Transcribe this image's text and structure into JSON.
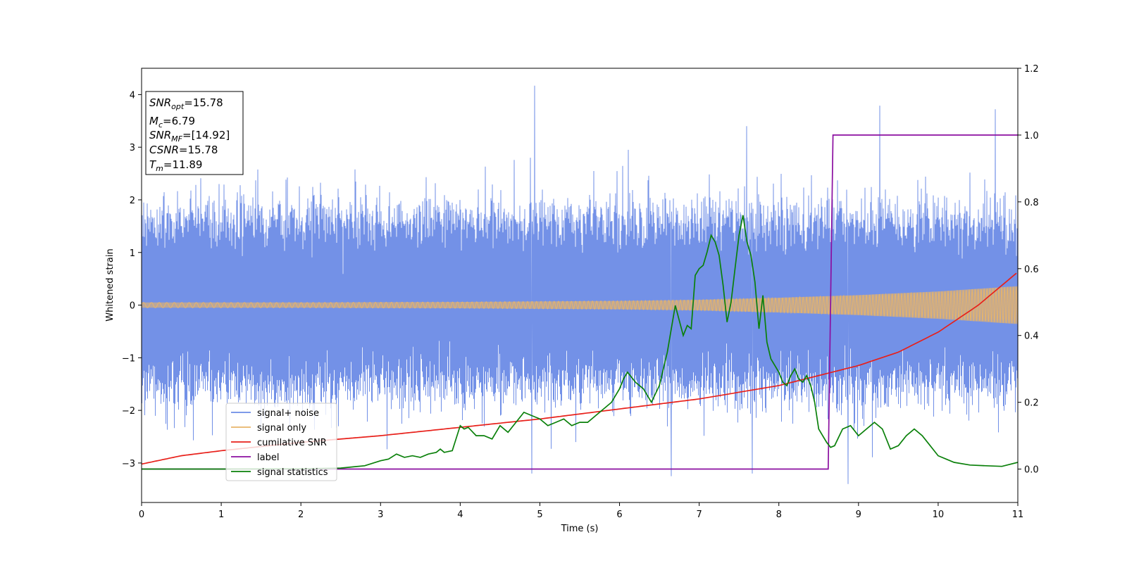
{
  "chart_data": {
    "type": "line",
    "xlabel": "Time (s)",
    "ylabel": "Whitened strain",
    "xlim": [
      0,
      11
    ],
    "ylim": [
      -3.75,
      4.5
    ],
    "y2lim": [
      -0.1,
      1.2
    ],
    "xticks": [
      "0",
      "1",
      "2",
      "3",
      "4",
      "5",
      "6",
      "7",
      "8",
      "9",
      "10",
      "11"
    ],
    "yticks": [
      "−3",
      "−2",
      "−1",
      "0",
      "1",
      "2",
      "3",
      "4"
    ],
    "y2ticks": [
      "0.0",
      "0.2",
      "0.4",
      "0.6",
      "0.8",
      "1.0",
      "1.2"
    ],
    "colors": {
      "signal_noise": "#6b8be6",
      "signal_only": "#e7b46a",
      "cumulative_snr": "#e8201a",
      "label": "#8b0fa0",
      "signal_statistics": "#0a800a"
    },
    "legend_position": "lower-left",
    "legend": [
      "signal+ noise",
      "signal only",
      "cumilative SNR",
      "label",
      "signal statistics"
    ],
    "info_box": [
      {
        "base": "SNR",
        "sub": "opt",
        "value": "=15.78"
      },
      {
        "base": "M",
        "sub": "c",
        "value": "=6.79"
      },
      {
        "base": "SNR",
        "sub": "MF",
        "value": "=[14.92]"
      },
      {
        "base": "CSNR",
        "sub": "",
        "value": "=15.78"
      },
      {
        "base": "T",
        "sub": "m",
        "value": "=11.89"
      }
    ],
    "series": [
      {
        "name": "signal+ noise",
        "axis": "left",
        "kind": "noise",
        "band": [
          -1.5,
          1.6
        ],
        "peaks": [
          [
            4.93,
            4.17
          ],
          [
            9.27,
            3.79
          ],
          [
            10.72,
            3.72
          ],
          [
            7.6,
            3.4
          ],
          [
            8.87,
            -3.4
          ],
          [
            6.65,
            -3.25
          ],
          [
            4.9,
            -3.2
          ],
          [
            7.67,
            -3.2
          ]
        ]
      },
      {
        "name": "signal only",
        "axis": "left",
        "kind": "envelope",
        "x": [
          0,
          2,
          4,
          6,
          7,
          8,
          9,
          10,
          11
        ],
        "values": [
          0.05,
          0.05,
          0.06,
          0.08,
          0.1,
          0.14,
          0.19,
          0.26,
          0.36
        ]
      },
      {
        "name": "cumilative SNR",
        "axis": "right",
        "x": [
          0,
          0.5,
          1,
          2,
          3,
          4,
          5,
          6,
          7,
          8,
          8.5,
          9,
          9.5,
          10,
          10.5,
          11
        ],
        "values": [
          0.015,
          0.04,
          0.055,
          0.08,
          0.1,
          0.125,
          0.15,
          0.18,
          0.21,
          0.25,
          0.28,
          0.31,
          0.35,
          0.41,
          0.49,
          0.59
        ]
      },
      {
        "name": "label",
        "axis": "right",
        "x": [
          0,
          8.62,
          8.68,
          11
        ],
        "values": [
          0,
          0,
          1,
          1
        ]
      },
      {
        "name": "signal statistics",
        "axis": "right",
        "x": [
          0,
          1,
          2,
          2.5,
          2.8,
          3.0,
          3.1,
          3.2,
          3.3,
          3.4,
          3.5,
          3.6,
          3.7,
          3.75,
          3.8,
          3.9,
          4.0,
          4.05,
          4.1,
          4.2,
          4.3,
          4.4,
          4.5,
          4.6,
          4.7,
          4.8,
          4.9,
          5.0,
          5.1,
          5.2,
          5.3,
          5.4,
          5.5,
          5.6,
          5.7,
          5.8,
          5.9,
          6.0,
          6.05,
          6.1,
          6.2,
          6.3,
          6.35,
          6.4,
          6.5,
          6.6,
          6.7,
          6.8,
          6.85,
          6.9,
          6.95,
          7.0,
          7.05,
          7.1,
          7.15,
          7.2,
          7.25,
          7.3,
          7.35,
          7.4,
          7.45,
          7.5,
          7.55,
          7.6,
          7.65,
          7.7,
          7.75,
          7.8,
          7.85,
          7.9,
          7.95,
          8.0,
          8.05,
          8.1,
          8.15,
          8.2,
          8.25,
          8.3,
          8.35,
          8.4,
          8.45,
          8.5,
          8.55,
          8.6,
          8.65,
          8.7,
          8.8,
          8.9,
          9.0,
          9.1,
          9.2,
          9.3,
          9.4,
          9.5,
          9.6,
          9.7,
          9.8,
          9.9,
          10.0,
          10.1,
          10.2,
          10.4,
          10.6,
          10.8,
          11.0
        ],
        "values": [
          0,
          0,
          0.001,
          0.003,
          0.01,
          0.025,
          0.03,
          0.045,
          0.035,
          0.04,
          0.035,
          0.045,
          0.05,
          0.06,
          0.05,
          0.055,
          0.13,
          0.12,
          0.125,
          0.1,
          0.1,
          0.09,
          0.13,
          0.11,
          0.14,
          0.17,
          0.16,
          0.15,
          0.13,
          0.14,
          0.15,
          0.13,
          0.14,
          0.14,
          0.16,
          0.18,
          0.2,
          0.24,
          0.27,
          0.29,
          0.26,
          0.24,
          0.22,
          0.2,
          0.25,
          0.35,
          0.49,
          0.4,
          0.43,
          0.42,
          0.58,
          0.6,
          0.61,
          0.65,
          0.7,
          0.68,
          0.64,
          0.55,
          0.44,
          0.5,
          0.6,
          0.7,
          0.76,
          0.68,
          0.64,
          0.56,
          0.42,
          0.52,
          0.38,
          0.33,
          0.31,
          0.29,
          0.26,
          0.25,
          0.28,
          0.3,
          0.27,
          0.26,
          0.28,
          0.25,
          0.2,
          0.12,
          0.1,
          0.08,
          0.065,
          0.07,
          0.12,
          0.13,
          0.1,
          0.12,
          0.14,
          0.12,
          0.06,
          0.07,
          0.1,
          0.12,
          0.1,
          0.07,
          0.04,
          0.03,
          0.02,
          0.012,
          0.01,
          0.008,
          0.02
        ]
      }
    ]
  }
}
